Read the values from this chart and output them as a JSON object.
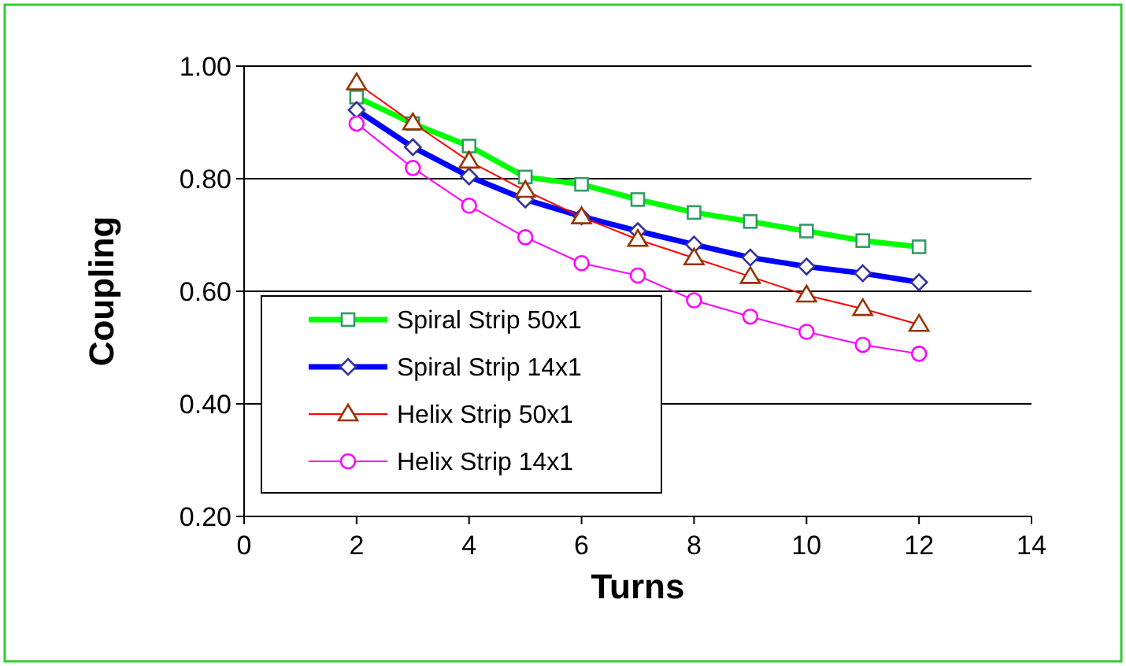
{
  "chart_data": {
    "type": "line",
    "xlabel": "Turns",
    "ylabel": "Coupling",
    "x": [
      2,
      3,
      4,
      5,
      6,
      7,
      8,
      9,
      10,
      11,
      12
    ],
    "xlim": [
      0,
      14
    ],
    "xticks": [
      0,
      2,
      4,
      6,
      8,
      10,
      12,
      14
    ],
    "ylim": [
      0.2,
      1.0
    ],
    "yticks": [
      {
        "value": 0.2,
        "label": "0.20"
      },
      {
        "value": 0.4,
        "label": "0.40"
      },
      {
        "value": 0.6,
        "label": "0.60"
      },
      {
        "value": 0.8,
        "label": "0.80"
      },
      {
        "value": 1.0,
        "label": "1.00"
      }
    ],
    "grid": "y",
    "legend": "bottom left",
    "series": [
      {
        "name": "Spiral Strip 50x1",
        "color": "#00ff00",
        "marker": "square",
        "values": [
          0.945,
          0.898,
          0.858,
          0.803,
          0.79,
          0.763,
          0.74,
          0.724,
          0.707,
          0.69,
          0.679
        ]
      },
      {
        "name": "Spiral Strip 14x1",
        "color": "#0000ff",
        "marker": "diamond",
        "values": [
          0.922,
          0.856,
          0.804,
          0.763,
          0.733,
          0.707,
          0.683,
          0.66,
          0.644,
          0.632,
          0.616
        ]
      },
      {
        "name": "Helix Strip 50x1",
        "color": "#ff0000",
        "marker": "triangle",
        "values": [
          0.97,
          0.899,
          0.831,
          0.779,
          0.732,
          0.692,
          0.659,
          0.626,
          0.593,
          0.569,
          0.541
        ]
      },
      {
        "name": "Helix Strip 14x1",
        "color": "#ff00ff",
        "marker": "circle",
        "values": [
          0.898,
          0.819,
          0.752,
          0.696,
          0.65,
          0.628,
          0.584,
          0.555,
          0.528,
          0.505,
          0.489
        ]
      }
    ]
  }
}
